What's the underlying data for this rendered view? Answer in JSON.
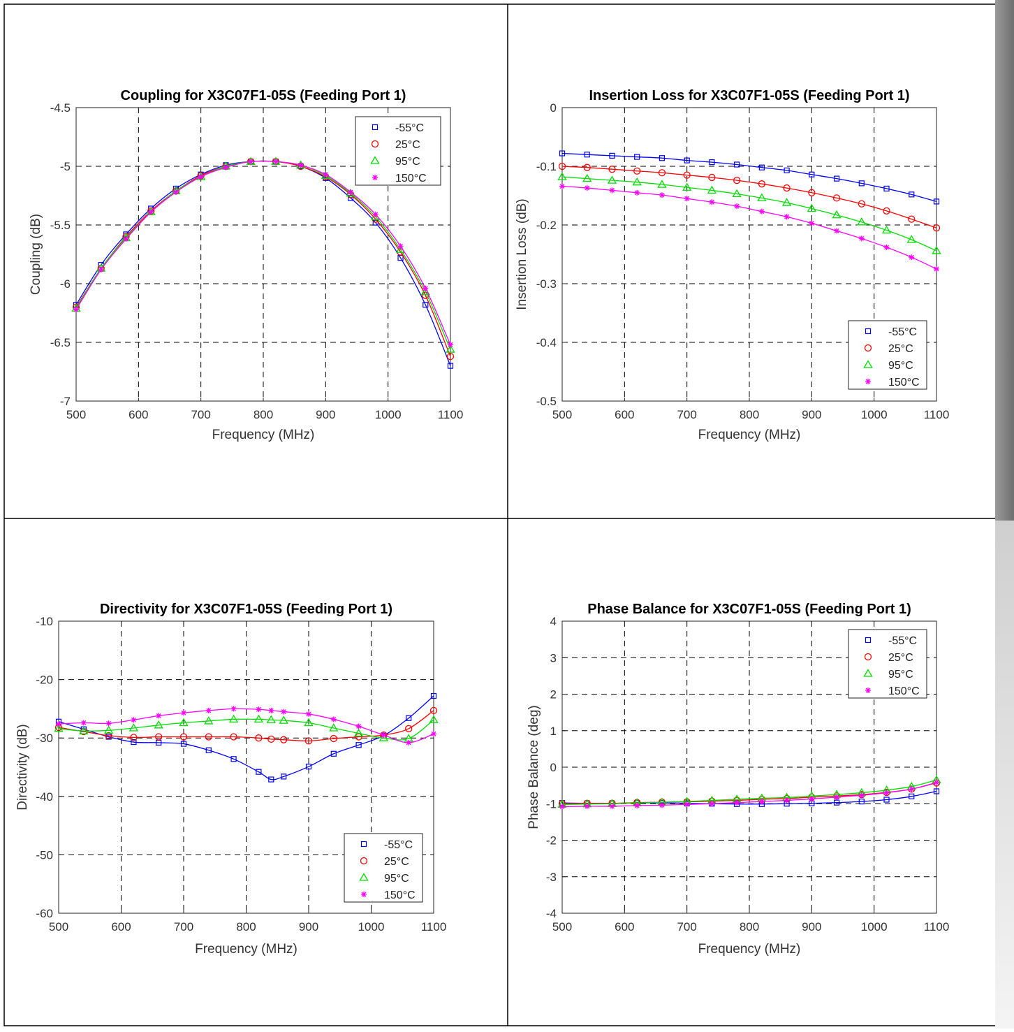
{
  "series_meta": {
    "colors": {
      "-55°C": "#0000ff",
      "25°C": "#ff0000",
      "95°C": "#00dd00",
      "150°C": "#ff00ff"
    },
    "markers": {
      "-55°C": "square",
      "25°C": "circle",
      "95°C": "triangle",
      "150°C": "asterisk"
    }
  },
  "chart_data": [
    {
      "type": "line",
      "title": "Coupling for X3C07F1-05S (Feeding Port 1)",
      "xlabel": "Frequency (MHz)",
      "ylabel": "Coupling (dB)",
      "xlim": [
        500,
        1100
      ],
      "ylim": [
        -7,
        -4.5
      ],
      "xticks": [
        "500",
        "600",
        "700",
        "800",
        "900",
        "1000",
        "1100"
      ],
      "yticks": [
        "-7",
        "-6.5",
        "-6",
        "-5.5",
        "-5",
        "-4.5"
      ],
      "grid": true,
      "legend_position": "top-right",
      "x": [
        500,
        540,
        580,
        620,
        660,
        700,
        740,
        780,
        820,
        860,
        900,
        940,
        980,
        1020,
        1060,
        1100
      ],
      "series": [
        {
          "name": "-55°C",
          "values": [
            -6.18,
            -5.84,
            -5.58,
            -5.36,
            -5.19,
            -5.07,
            -4.99,
            -4.96,
            -4.96,
            -5.0,
            -5.1,
            -5.27,
            -5.48,
            -5.78,
            -6.18,
            -6.7
          ]
        },
        {
          "name": "25°C",
          "values": [
            -6.2,
            -5.87,
            -5.6,
            -5.38,
            -5.21,
            -5.08,
            -5.0,
            -4.96,
            -4.96,
            -5.0,
            -5.09,
            -5.24,
            -5.45,
            -5.73,
            -6.1,
            -6.62
          ]
        },
        {
          "name": "95°C",
          "values": [
            -6.21,
            -5.87,
            -5.61,
            -5.39,
            -5.21,
            -5.09,
            -5.0,
            -4.96,
            -4.96,
            -4.99,
            -5.08,
            -5.23,
            -5.43,
            -5.71,
            -6.07,
            -6.56
          ]
        },
        {
          "name": "150°C",
          "values": [
            -6.22,
            -5.88,
            -5.62,
            -5.39,
            -5.22,
            -5.09,
            -5.01,
            -4.96,
            -4.96,
            -4.99,
            -5.07,
            -5.22,
            -5.41,
            -5.68,
            -6.04,
            -6.52
          ]
        }
      ]
    },
    {
      "type": "line",
      "title": "Insertion Loss for X3C07F1-05S (Feeding Port 1)",
      "xlabel": "Frequency (MHz)",
      "ylabel": "Insertion Loss (dB)",
      "xlim": [
        500,
        1100
      ],
      "ylim": [
        -0.5,
        0
      ],
      "xticks": [
        "500",
        "600",
        "700",
        "800",
        "900",
        "1000",
        "1100"
      ],
      "yticks": [
        "-0.5",
        "-0.4",
        "-0.3",
        "-0.2",
        "-0.1",
        "0"
      ],
      "grid": true,
      "legend_position": "bottom-right",
      "x": [
        500,
        540,
        580,
        620,
        660,
        700,
        740,
        780,
        820,
        860,
        900,
        940,
        980,
        1020,
        1060,
        1100
      ],
      "series": [
        {
          "name": "-55°C",
          "values": [
            -0.078,
            -0.08,
            -0.082,
            -0.084,
            -0.086,
            -0.09,
            -0.093,
            -0.097,
            -0.102,
            -0.107,
            -0.114,
            -0.121,
            -0.129,
            -0.138,
            -0.148,
            -0.16
          ]
        },
        {
          "name": "25°C",
          "values": [
            -0.1,
            -0.102,
            -0.105,
            -0.108,
            -0.111,
            -0.115,
            -0.119,
            -0.124,
            -0.13,
            -0.137,
            -0.145,
            -0.154,
            -0.164,
            -0.176,
            -0.19,
            -0.205
          ]
        },
        {
          "name": "95°C",
          "values": [
            -0.118,
            -0.121,
            -0.124,
            -0.127,
            -0.131,
            -0.136,
            -0.141,
            -0.147,
            -0.154,
            -0.162,
            -0.172,
            -0.183,
            -0.195,
            -0.209,
            -0.225,
            -0.244
          ]
        },
        {
          "name": "150°C",
          "values": [
            -0.134,
            -0.137,
            -0.141,
            -0.145,
            -0.149,
            -0.155,
            -0.161,
            -0.168,
            -0.177,
            -0.186,
            -0.197,
            -0.21,
            -0.223,
            -0.238,
            -0.255,
            -0.275
          ]
        }
      ]
    },
    {
      "type": "line",
      "title": "Directivity for X3C07F1-05S (Feeding Port 1)",
      "xlabel": "Frequency (MHz)",
      "ylabel": "Directivity (dB)",
      "xlim": [
        500,
        1100
      ],
      "ylim": [
        -60,
        -10
      ],
      "xticks": [
        "500",
        "600",
        "700",
        "800",
        "900",
        "1000",
        "1100"
      ],
      "yticks": [
        "-60",
        "-50",
        "-40",
        "-30",
        "-20",
        "-10"
      ],
      "grid": true,
      "legend_position": "bottom-right",
      "x": [
        500,
        540,
        580,
        620,
        660,
        700,
        740,
        780,
        820,
        840,
        860,
        900,
        940,
        980,
        1020,
        1060,
        1100
      ],
      "series": [
        {
          "name": "-55°C",
          "values": [
            -27.2,
            -28.5,
            -29.8,
            -30.7,
            -30.8,
            -31.0,
            -32.1,
            -33.6,
            -35.8,
            -37.1,
            -36.6,
            -34.9,
            -32.7,
            -31.2,
            -29.6,
            -26.6,
            -22.8
          ]
        },
        {
          "name": "25°C",
          "values": [
            -28.2,
            -28.9,
            -29.6,
            -29.9,
            -29.8,
            -29.8,
            -29.8,
            -29.8,
            -30.0,
            -30.2,
            -30.3,
            -30.5,
            -30.1,
            -29.8,
            -29.5,
            -28.4,
            -25.3
          ]
        },
        {
          "name": "95°C",
          "values": [
            -28.4,
            -28.8,
            -28.7,
            -28.3,
            -27.8,
            -27.4,
            -27.1,
            -26.8,
            -26.8,
            -26.9,
            -27.0,
            -27.4,
            -28.3,
            -29.2,
            -30.0,
            -30.1,
            -26.9
          ]
        },
        {
          "name": "150°C",
          "values": [
            -27.6,
            -27.4,
            -27.5,
            -26.9,
            -26.2,
            -25.7,
            -25.3,
            -25.0,
            -25.1,
            -25.3,
            -25.5,
            -25.9,
            -26.8,
            -28.0,
            -29.5,
            -30.8,
            -29.3
          ]
        }
      ]
    },
    {
      "type": "line",
      "title": "Phase Balance for X3C07F1-05S (Feeding Port 1)",
      "xlabel": "Frequency (MHz)",
      "ylabel": "Phase Balance (deg)",
      "xlim": [
        500,
        1100
      ],
      "ylim": [
        -4,
        4
      ],
      "xticks": [
        "500",
        "600",
        "700",
        "800",
        "900",
        "1000",
        "1100"
      ],
      "yticks": [
        "-4",
        "-3",
        "-2",
        "-1",
        "0",
        "1",
        "2",
        "3",
        "4"
      ],
      "grid": true,
      "legend_position": "top-right",
      "x": [
        500,
        540,
        580,
        620,
        660,
        700,
        740,
        780,
        820,
        860,
        900,
        940,
        980,
        1020,
        1060,
        1100
      ],
      "series": [
        {
          "name": "-55°C",
          "values": [
            -0.98,
            -0.99,
            -0.99,
            -0.98,
            -0.98,
            -0.99,
            -1.0,
            -1.01,
            -1.01,
            -1.0,
            -0.99,
            -0.97,
            -0.94,
            -0.89,
            -0.8,
            -0.66
          ]
        },
        {
          "name": "25°C",
          "values": [
            -1.0,
            -0.99,
            -0.99,
            -0.97,
            -0.96,
            -0.95,
            -0.93,
            -0.91,
            -0.88,
            -0.86,
            -0.82,
            -0.79,
            -0.75,
            -0.69,
            -0.6,
            -0.43
          ]
        },
        {
          "name": "95°C",
          "values": [
            -1.02,
            -1.01,
            -1.0,
            -0.98,
            -0.96,
            -0.94,
            -0.91,
            -0.88,
            -0.85,
            -0.83,
            -0.79,
            -0.75,
            -0.7,
            -0.63,
            -0.53,
            -0.35
          ]
        },
        {
          "name": "150°C",
          "values": [
            -1.08,
            -1.07,
            -1.07,
            -1.05,
            -1.04,
            -1.02,
            -1.0,
            -0.97,
            -0.94,
            -0.91,
            -0.87,
            -0.82,
            -0.77,
            -0.7,
            -0.6,
            -0.42
          ]
        }
      ]
    }
  ]
}
